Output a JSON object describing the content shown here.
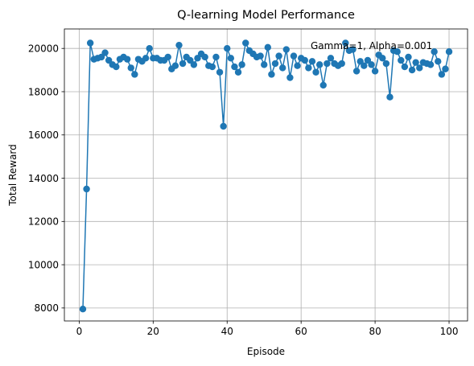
{
  "chart_data": {
    "type": "line",
    "title": "Q-learning Model Performance",
    "xlabel": "Episode",
    "ylabel": "Total Reward",
    "annotation": "Gamma=1, Alpha=0.001",
    "xlim": [
      -4,
      105
    ],
    "ylim": [
      7400,
      20900
    ],
    "xticks": [
      0,
      20,
      40,
      60,
      80,
      100
    ],
    "yticks": [
      8000,
      10000,
      12000,
      14000,
      16000,
      18000,
      20000
    ],
    "grid": true,
    "series": [
      {
        "color": "#1f77b4",
        "marker": "circle",
        "x": [
          1,
          2,
          3,
          4,
          5,
          6,
          7,
          8,
          9,
          10,
          11,
          12,
          13,
          14,
          15,
          16,
          17,
          18,
          19,
          20,
          21,
          22,
          23,
          24,
          25,
          26,
          27,
          28,
          29,
          30,
          31,
          32,
          33,
          34,
          35,
          36,
          37,
          38,
          39,
          40,
          41,
          42,
          43,
          44,
          45,
          46,
          47,
          48,
          49,
          50,
          51,
          52,
          53,
          54,
          55,
          56,
          57,
          58,
          59,
          60,
          61,
          62,
          63,
          64,
          65,
          66,
          67,
          68,
          69,
          70,
          71,
          72,
          73,
          74,
          75,
          76,
          77,
          78,
          79,
          80,
          81,
          82,
          83,
          84,
          85,
          86,
          87,
          88,
          89,
          90,
          91,
          92,
          93,
          94,
          95,
          96,
          97,
          98,
          99,
          100
        ],
        "y": [
          7950,
          13500,
          20250,
          19500,
          19550,
          19600,
          19800,
          19450,
          19250,
          19150,
          19500,
          19600,
          19500,
          19100,
          18800,
          19500,
          19400,
          19550,
          20000,
          19550,
          19550,
          19450,
          19450,
          19600,
          19050,
          19200,
          20150,
          19300,
          19600,
          19450,
          19250,
          19550,
          19750,
          19600,
          19200,
          19150,
          19600,
          18900,
          16400,
          20000,
          19550,
          19150,
          18900,
          19250,
          20250,
          19900,
          19750,
          19600,
          19650,
          19250,
          20050,
          18800,
          19300,
          19650,
          19100,
          19950,
          18650,
          19650,
          19200,
          19550,
          19450,
          19100,
          19400,
          18900,
          19250,
          18300,
          19300,
          19550,
          19300,
          19200,
          19300,
          20250,
          19900,
          19950,
          18950,
          19400,
          19200,
          19450,
          19250,
          18950,
          19700,
          19550,
          19300,
          17750,
          19900,
          19850,
          19450,
          19150,
          19600,
          19000,
          19350,
          19100,
          19350,
          19300,
          19250,
          19850,
          19400,
          18800,
          19050,
          19850
        ]
      }
    ]
  }
}
